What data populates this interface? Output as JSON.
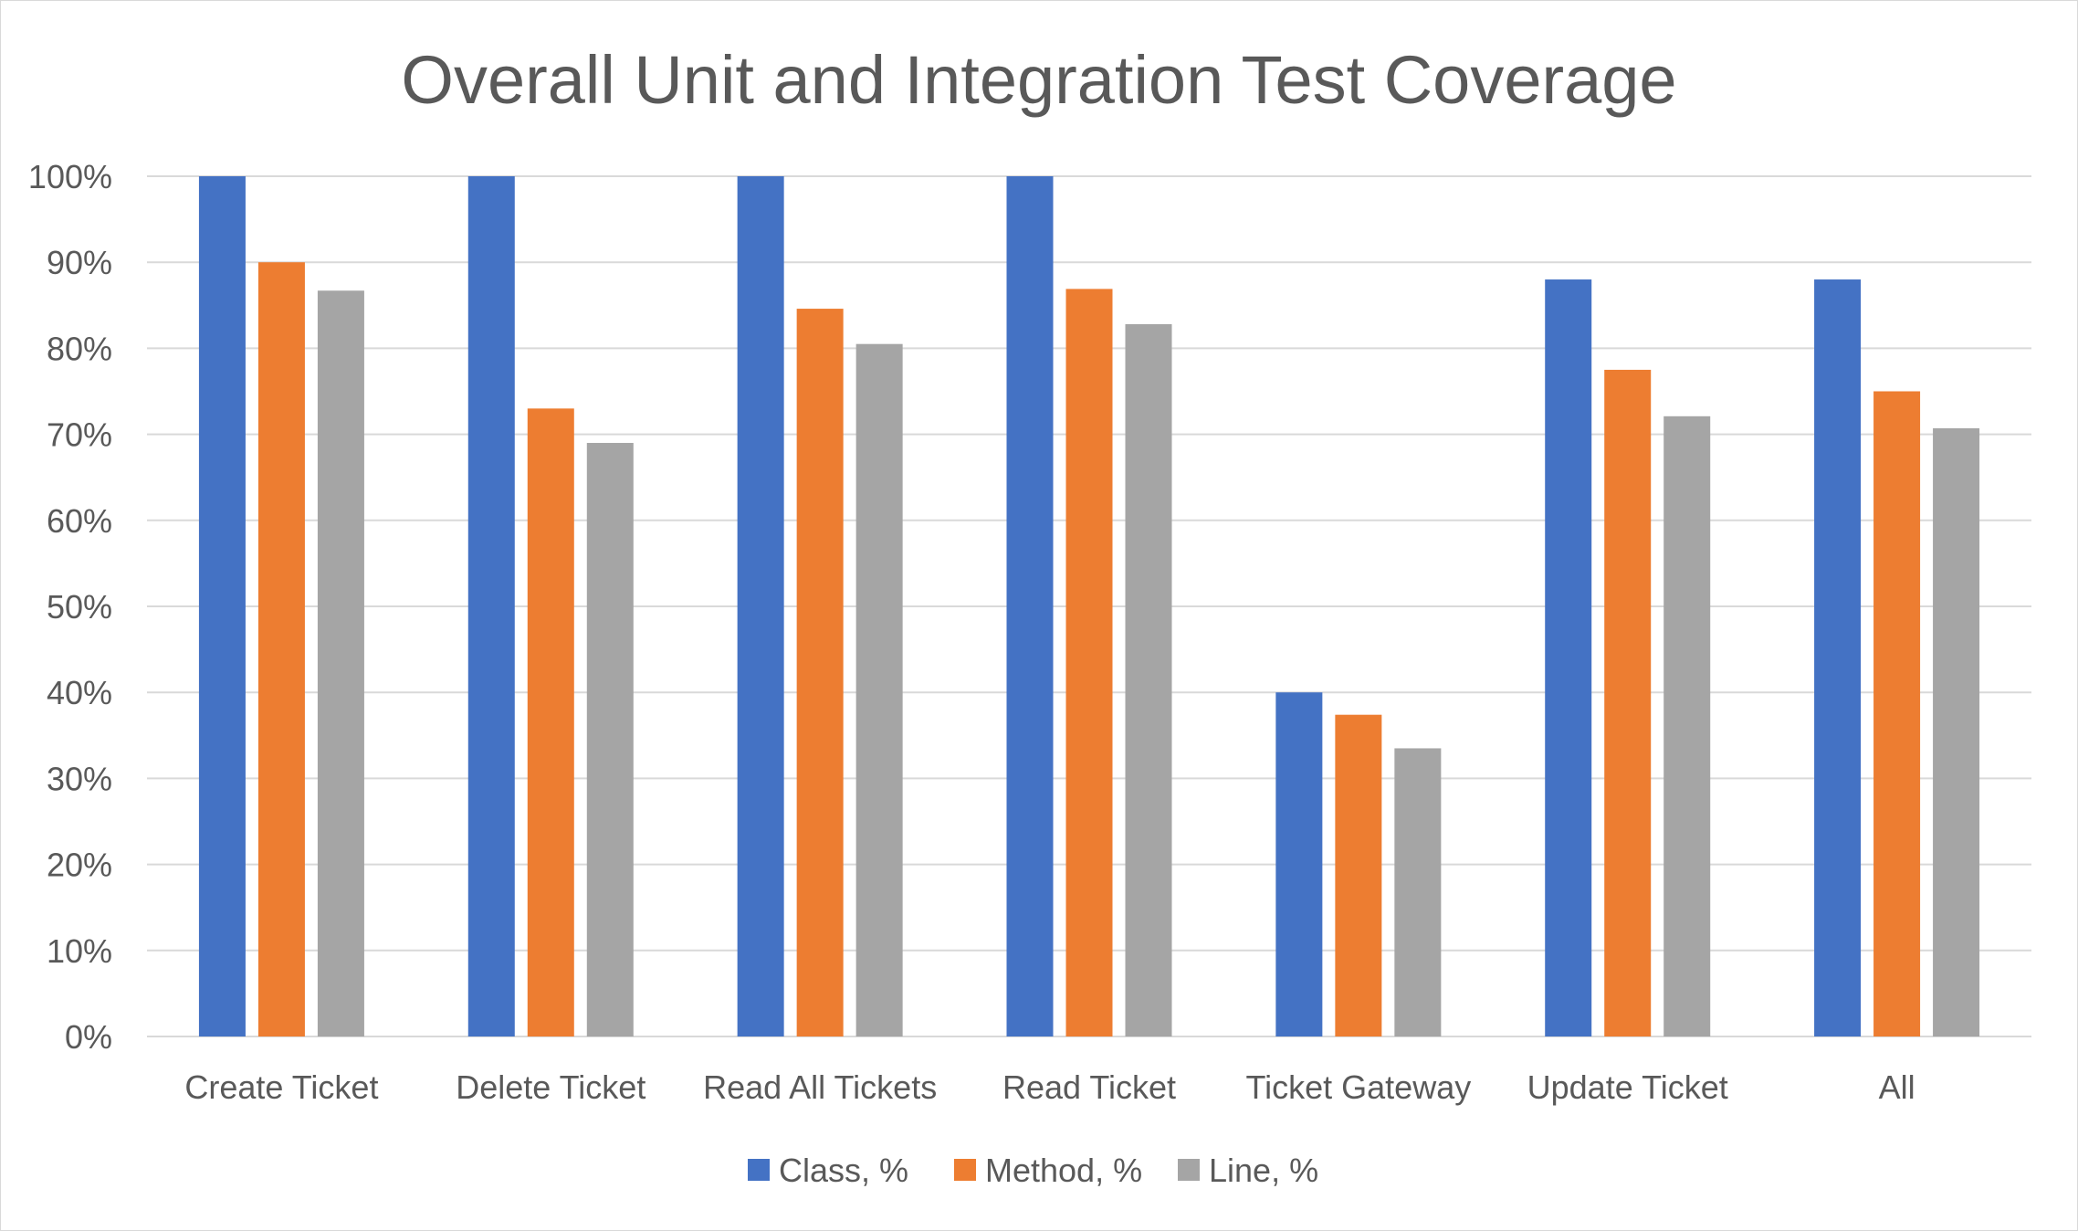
{
  "chart_data": {
    "type": "bar",
    "title": "Overall Unit and Integration Test Coverage",
    "categories": [
      "Create Ticket",
      "Delete Ticket",
      "Read All Tickets",
      "Read Ticket",
      "Ticket Gateway",
      "Update Ticket",
      "All"
    ],
    "series": [
      {
        "name": "Class, %",
        "color": "#4472C4",
        "values": [
          100,
          100,
          100,
          100,
          40,
          88,
          88
        ]
      },
      {
        "name": "Method, %",
        "color": "#ED7D31",
        "values": [
          90,
          73,
          84.6,
          86.9,
          37.4,
          77.5,
          75
        ]
      },
      {
        "name": "Line, %",
        "color": "#A5A5A5",
        "values": [
          86.7,
          69,
          80.5,
          82.8,
          33.5,
          72.1,
          70.7
        ]
      }
    ],
    "ylim": [
      0,
      100
    ],
    "y_ticks": [
      "0%",
      "10%",
      "20%",
      "30%",
      "40%",
      "50%",
      "60%",
      "70%",
      "80%",
      "90%",
      "100%"
    ],
    "grid": true,
    "gridline_color": "#d9d9d9",
    "legend_position": "bottom"
  }
}
